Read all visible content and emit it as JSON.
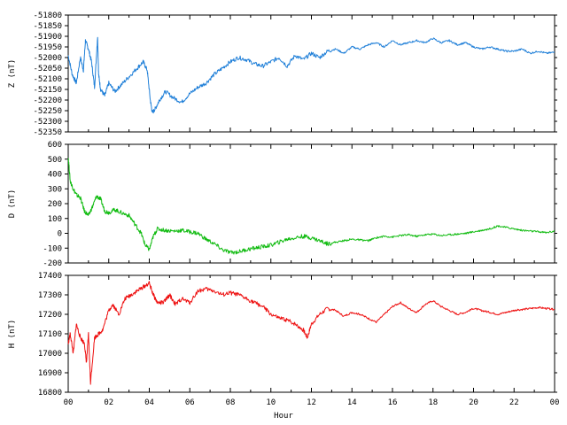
{
  "chart_data": {
    "type": "line",
    "xlabel": "Hour",
    "x_range": [
      0,
      24
    ],
    "x_ticks": [
      "00",
      "02",
      "04",
      "06",
      "08",
      "10",
      "12",
      "14",
      "16",
      "18",
      "20",
      "22",
      "00"
    ],
    "panels": [
      {
        "name": "Z",
        "ylabel": "Z (nT)",
        "ylim": [
          -52350,
          -51800
        ],
        "yticks": [
          -51800,
          -51850,
          -51900,
          -51950,
          -52000,
          -52050,
          -52100,
          -52150,
          -52200,
          -52250,
          -52300,
          -52350
        ],
        "ytick_labels": [
          "-51800",
          "-51850",
          "-51900",
          "-51950",
          "-52000",
          "-52050",
          "-52100",
          "-52150",
          "-52200",
          "-52250",
          "-52300",
          "-52350"
        ],
        "color": "#1f7fd8",
        "x": [
          0,
          0.2,
          0.4,
          0.6,
          0.75,
          0.85,
          1.0,
          1.15,
          1.3,
          1.45,
          1.5,
          1.6,
          1.8,
          2.0,
          2.3,
          2.6,
          3.0,
          3.4,
          3.7,
          3.9,
          4.05,
          4.15,
          4.3,
          4.5,
          4.8,
          5.2,
          5.6,
          6.0,
          6.4,
          6.8,
          7.2,
          7.6,
          8.0,
          8.4,
          8.8,
          9.2,
          9.6,
          10.0,
          10.4,
          10.8,
          11.2,
          11.6,
          12.0,
          12.4,
          12.8,
          13.2,
          13.6,
          14.0,
          14.4,
          14.8,
          15.2,
          15.6,
          16.0,
          16.4,
          16.8,
          17.2,
          17.6,
          18.0,
          18.4,
          18.8,
          19.2,
          19.6,
          20.0,
          20.4,
          20.8,
          21.2,
          21.6,
          22.0,
          22.4,
          22.8,
          23.2,
          23.6,
          24.0
        ],
        "values": [
          -51990,
          -52080,
          -52120,
          -52000,
          -52060,
          -51920,
          -51960,
          -52020,
          -52140,
          -51900,
          -52080,
          -52150,
          -52180,
          -52120,
          -52160,
          -52130,
          -52090,
          -52050,
          -52020,
          -52060,
          -52200,
          -52260,
          -52240,
          -52200,
          -52160,
          -52190,
          -52210,
          -52170,
          -52140,
          -52120,
          -52080,
          -52050,
          -52020,
          -52000,
          -52010,
          -52030,
          -52040,
          -52020,
          -52000,
          -52040,
          -51990,
          -52010,
          -51980,
          -52000,
          -51970,
          -51960,
          -51980,
          -51950,
          -51960,
          -51940,
          -51930,
          -51950,
          -51920,
          -51940,
          -51930,
          -51920,
          -51930,
          -51910,
          -51930,
          -51920,
          -51940,
          -51930,
          -51950,
          -51960,
          -51950,
          -51960,
          -51970,
          -51970,
          -51960,
          -51980,
          -51970,
          -51980,
          -51975
        ]
      },
      {
        "name": "D",
        "ylabel": "D (nT)",
        "ylim": [
          -200,
          600
        ],
        "yticks": [
          600,
          500,
          400,
          300,
          200,
          100,
          0,
          -100,
          -200
        ],
        "ytick_labels": [
          "600",
          "500",
          "400",
          "300",
          "200",
          "100",
          "0",
          "-100",
          "-200"
        ],
        "color": "#10bb10",
        "x": [
          0,
          0.1,
          0.25,
          0.4,
          0.6,
          0.8,
          1.0,
          1.2,
          1.4,
          1.6,
          1.8,
          2.0,
          2.3,
          2.6,
          3.0,
          3.3,
          3.6,
          3.8,
          4.0,
          4.2,
          4.4,
          4.8,
          5.2,
          5.6,
          6.0,
          6.4,
          6.8,
          7.2,
          7.6,
          8.0,
          8.4,
          8.8,
          9.2,
          9.6,
          10.0,
          10.4,
          10.8,
          11.2,
          11.6,
          12.0,
          12.4,
          12.8,
          13.2,
          13.6,
          14.0,
          14.4,
          14.8,
          15.2,
          15.6,
          16.0,
          16.4,
          16.8,
          17.2,
          17.6,
          18.0,
          18.4,
          18.8,
          19.2,
          19.6,
          20.0,
          20.4,
          20.8,
          21.2,
          21.6,
          22.0,
          22.4,
          22.8,
          23.2,
          23.6,
          24.0
        ],
        "values": [
          520,
          350,
          300,
          260,
          240,
          150,
          120,
          180,
          250,
          230,
          150,
          140,
          160,
          140,
          120,
          60,
          0,
          -80,
          -110,
          -20,
          30,
          20,
          15,
          20,
          10,
          0,
          -40,
          -70,
          -110,
          -130,
          -125,
          -110,
          -100,
          -90,
          -80,
          -60,
          -40,
          -30,
          -20,
          -30,
          -50,
          -70,
          -60,
          -50,
          -40,
          -45,
          -50,
          -30,
          -20,
          -25,
          -15,
          -10,
          -20,
          -10,
          -5,
          -15,
          -10,
          -5,
          0,
          10,
          20,
          30,
          50,
          40,
          30,
          20,
          15,
          10,
          5,
          15
        ]
      },
      {
        "name": "H",
        "ylabel": "H (nT)",
        "ylim": [
          16800,
          17400
        ],
        "yticks": [
          17400,
          17300,
          17200,
          17100,
          17000,
          16900,
          16800
        ],
        "ytick_labels": [
          "17400",
          "17300",
          "17200",
          "17100",
          "17000",
          "16900",
          "16800"
        ],
        "color": "#ee1010",
        "x": [
          0,
          0.1,
          0.25,
          0.4,
          0.6,
          0.8,
          0.9,
          1.0,
          1.1,
          1.3,
          1.5,
          1.7,
          2.0,
          2.2,
          2.5,
          2.8,
          3.1,
          3.4,
          3.7,
          4.0,
          4.2,
          4.4,
          4.7,
          5.0,
          5.3,
          5.6,
          6.0,
          6.4,
          6.8,
          7.2,
          7.6,
          8.0,
          8.4,
          8.8,
          9.2,
          9.6,
          10.0,
          10.4,
          10.8,
          11.2,
          11.6,
          11.8,
          12.0,
          12.4,
          12.8,
          13.2,
          13.6,
          14.0,
          14.4,
          14.8,
          15.2,
          15.6,
          16.0,
          16.4,
          16.8,
          17.2,
          17.6,
          18.0,
          18.4,
          18.8,
          19.2,
          19.6,
          20.0,
          20.4,
          20.8,
          21.2,
          21.6,
          22.0,
          22.4,
          22.8,
          23.2,
          23.6,
          24.0
        ],
        "values": [
          17050,
          17100,
          17000,
          17150,
          17080,
          17050,
          16950,
          17100,
          16850,
          17080,
          17100,
          17120,
          17220,
          17250,
          17200,
          17280,
          17300,
          17320,
          17340,
          17360,
          17300,
          17260,
          17260,
          17300,
          17250,
          17280,
          17260,
          17320,
          17330,
          17320,
          17300,
          17310,
          17300,
          17280,
          17260,
          17240,
          17200,
          17180,
          17170,
          17150,
          17120,
          17080,
          17150,
          17200,
          17230,
          17220,
          17190,
          17210,
          17200,
          17180,
          17160,
          17200,
          17240,
          17260,
          17230,
          17210,
          17250,
          17270,
          17240,
          17220,
          17200,
          17210,
          17230,
          17220,
          17210,
          17200,
          17210,
          17220,
          17225,
          17230,
          17235,
          17230,
          17225
        ]
      }
    ]
  }
}
